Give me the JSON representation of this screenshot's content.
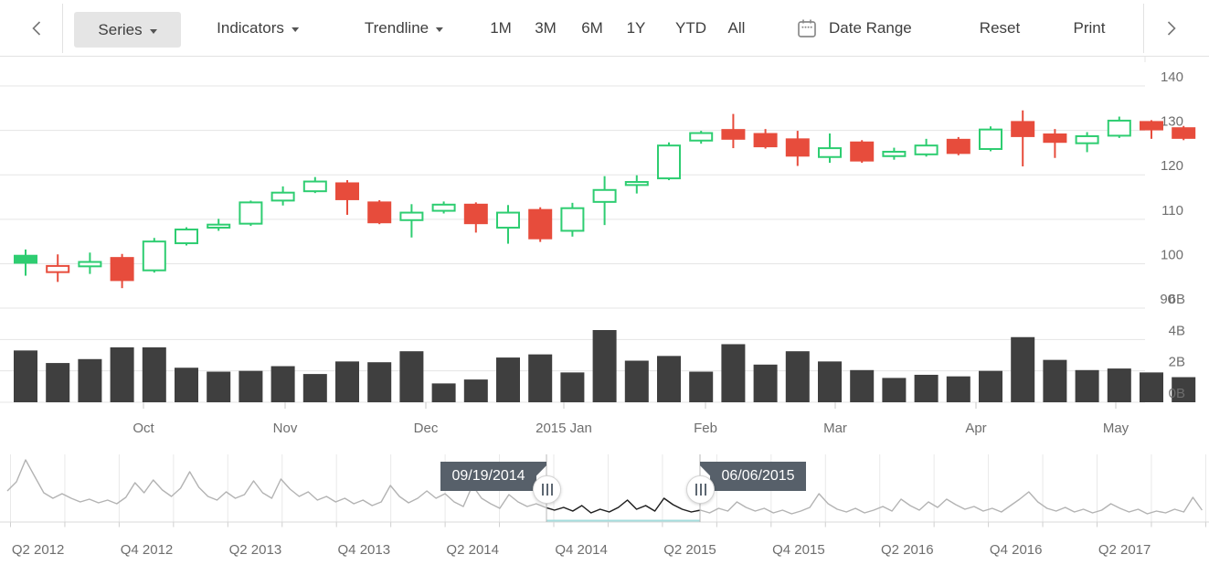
{
  "toolbar": {
    "series": "Series",
    "indicators": "Indicators",
    "trendline": "Trendline",
    "periods": [
      "1M",
      "3M",
      "6M",
      "1Y",
      "YTD",
      "All"
    ],
    "date_range": "Date Range",
    "reset": "Reset",
    "print": "Print"
  },
  "chart_data": {
    "type": "candlestick",
    "title": "",
    "legend": "off",
    "grid": "on",
    "price_axis": {
      "position": "right",
      "ticks": [
        140,
        130,
        120,
        110,
        100,
        90
      ],
      "range": [
        88,
        142
      ]
    },
    "volume_axis": {
      "position": "right",
      "tick_labels": [
        "6B",
        "4B",
        "2B",
        "0B"
      ],
      "ticks_billions": [
        6,
        4,
        2,
        0
      ]
    },
    "x_axis": {
      "tick_labels": [
        "Oct",
        "Nov",
        "Dec",
        "2015 Jan",
        "Feb",
        "Mar",
        "Apr",
        "May"
      ]
    },
    "colors": {
      "bull": "#2ecd71",
      "bear": "#e74c3c",
      "volume_bar": "#3f3f3f",
      "gridline": "#e5e5e5",
      "axis_label": "#6e6e6e"
    },
    "candle_format": [
      "body_top",
      "body_bottom",
      "high",
      "low",
      "color g=green r=red",
      "solid 1=filled 0=hollow"
    ],
    "candles": [
      [
        102.0,
        100.0,
        103.2,
        97.3,
        "g",
        1
      ],
      [
        99.7,
        97.9,
        102.1,
        95.9,
        "r",
        0
      ],
      [
        100.6,
        99.2,
        102.5,
        97.7,
        "g",
        0
      ],
      [
        101.5,
        96.1,
        102.2,
        94.5,
        "r",
        1
      ],
      [
        105.2,
        98.3,
        105.8,
        98.0,
        "g",
        0
      ],
      [
        107.9,
        104.4,
        108.2,
        104.1,
        "g",
        0
      ],
      [
        109.0,
        107.9,
        110.1,
        107.4,
        "g",
        0
      ],
      [
        114.0,
        108.8,
        114.2,
        108.5,
        "g",
        0
      ],
      [
        116.2,
        114.0,
        117.4,
        113.1,
        "g",
        0
      ],
      [
        118.7,
        116.1,
        119.5,
        115.9,
        "g",
        0
      ],
      [
        118.3,
        114.3,
        118.8,
        111.0,
        "r",
        1
      ],
      [
        114.0,
        109.1,
        114.3,
        108.9,
        "r",
        1
      ],
      [
        111.7,
        109.6,
        113.4,
        105.9,
        "g",
        0
      ],
      [
        113.5,
        111.7,
        114.0,
        111.3,
        "g",
        0
      ],
      [
        113.5,
        108.9,
        113.8,
        107.0,
        "r",
        1
      ],
      [
        111.7,
        107.9,
        113.2,
        104.5,
        "g",
        0
      ],
      [
        112.3,
        105.5,
        112.7,
        104.9,
        "r",
        1
      ],
      [
        112.7,
        107.2,
        113.7,
        106.1,
        "g",
        0
      ],
      [
        116.8,
        113.7,
        119.7,
        108.7,
        "g",
        0
      ],
      [
        118.6,
        117.5,
        119.9,
        115.8,
        "g",
        0
      ],
      [
        126.8,
        119.0,
        127.3,
        118.8,
        "g",
        0
      ],
      [
        129.6,
        127.5,
        129.9,
        127.0,
        "g",
        0
      ],
      [
        130.3,
        127.9,
        133.7,
        126.0,
        "r",
        1
      ],
      [
        129.4,
        126.2,
        130.3,
        125.9,
        "r",
        1
      ],
      [
        128.2,
        124.1,
        129.9,
        122.0,
        "r",
        1
      ],
      [
        126.2,
        123.8,
        129.3,
        122.7,
        "g",
        0
      ],
      [
        127.5,
        123.0,
        127.8,
        122.7,
        "r",
        1
      ],
      [
        125.4,
        124.0,
        126.1,
        123.4,
        "g",
        0
      ],
      [
        126.8,
        124.4,
        128.1,
        124.1,
        "g",
        0
      ],
      [
        128.1,
        124.7,
        128.5,
        124.4,
        "r",
        1
      ],
      [
        130.4,
        125.6,
        130.9,
        125.3,
        "g",
        0
      ],
      [
        132.1,
        128.5,
        134.5,
        121.9,
        "r",
        1
      ],
      [
        129.3,
        127.2,
        130.3,
        123.8,
        "r",
        1
      ],
      [
        128.9,
        126.9,
        129.6,
        125.1,
        "g",
        0
      ],
      [
        132.4,
        128.6,
        133.1,
        128.3,
        "g",
        0
      ],
      [
        132.1,
        130.0,
        132.3,
        128.1,
        "r",
        1
      ],
      [
        130.7,
        128.1,
        131.0,
        127.8,
        "r",
        1
      ]
    ],
    "volumes_billions": [
      3.3,
      2.5,
      2.75,
      3.5,
      3.5,
      2.2,
      1.95,
      2.0,
      2.3,
      1.8,
      2.6,
      2.55,
      3.25,
      1.2,
      1.45,
      2.85,
      3.05,
      1.9,
      4.6,
      2.65,
      2.95,
      1.95,
      3.7,
      2.4,
      3.25,
      2.6,
      2.05,
      1.55,
      1.75,
      1.65,
      2.0,
      4.15,
      2.7,
      2.05,
      2.15,
      1.9,
      1.6
    ],
    "navigator": {
      "type": "line",
      "start_date": "09/19/2014",
      "end_date": "06/06/2015",
      "quarter_labels": [
        "Q2 2012",
        "Q4 2012",
        "Q2 2013",
        "Q4 2013",
        "Q2 2014",
        "Q4 2014",
        "Q2 2015",
        "Q4 2015",
        "Q2 2016",
        "Q4 2016",
        "Q2 2017"
      ],
      "line_color_outside": "#b3b3b3",
      "line_color_selected": "#1f1f1f",
      "values_relative_0_70": [
        34,
        44,
        68,
        50,
        32,
        26,
        31,
        26,
        22,
        25,
        21,
        24,
        20,
        27,
        43,
        32,
        46,
        35,
        28,
        37,
        55,
        38,
        28,
        24,
        33,
        26,
        30,
        45,
        32,
        26,
        47,
        36,
        28,
        33,
        24,
        28,
        22,
        26,
        20,
        24,
        18,
        22,
        40,
        28,
        21,
        26,
        34,
        26,
        31,
        22,
        17,
        40,
        26,
        20,
        15,
        30,
        22,
        17,
        20,
        16,
        13,
        16,
        12,
        18,
        10,
        14,
        11,
        16,
        24,
        14,
        18,
        12,
        26,
        19,
        14,
        11,
        13,
        10,
        15,
        12,
        22,
        16,
        12,
        15,
        10,
        13,
        9,
        12,
        16,
        31,
        20,
        14,
        11,
        15,
        10,
        13,
        17,
        12,
        25,
        18,
        13,
        22,
        16,
        25,
        19,
        14,
        17,
        12,
        15,
        11,
        18,
        25,
        33,
        22,
        15,
        12,
        16,
        11,
        14,
        10,
        13,
        20,
        15,
        11,
        14,
        9,
        12,
        10,
        14,
        11,
        27,
        13
      ]
    }
  }
}
